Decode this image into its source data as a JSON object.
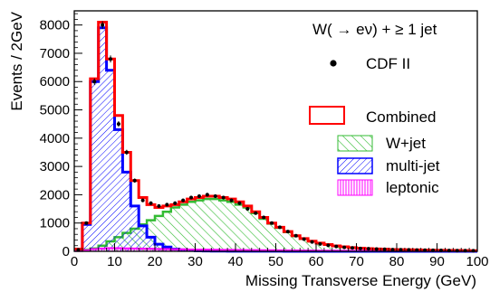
{
  "chart_data": {
    "type": "histogram",
    "title": "W( → eν) + ≥ 1 jet",
    "xlabel": "Missing Transverse Energy (GeV)",
    "ylabel": "Events / 2GeV",
    "xlim": [
      0,
      100
    ],
    "ylim": [
      0,
      8500
    ],
    "bin_width": 2,
    "x_ticks": [
      0,
      10,
      20,
      30,
      40,
      50,
      60,
      70,
      80,
      90,
      100
    ],
    "y_ticks": [
      0,
      1000,
      2000,
      3000,
      4000,
      5000,
      6000,
      7000,
      8000
    ],
    "legend_position": "top-right",
    "colors": {
      "data": "#000000",
      "combined": "#ff0000",
      "wjet": "#33bb33",
      "multijet": "#0000ff",
      "leptonic": "#ff00ff"
    },
    "series": [
      {
        "name": "CDF II",
        "style": "points",
        "values": [
          50,
          1000,
          6000,
          8000,
          6800,
          4500,
          3500,
          2500,
          1800,
          1700,
          1600,
          1650,
          1700,
          1800,
          1900,
          1950,
          2000,
          1950,
          1900,
          1800,
          1700,
          1500,
          1350,
          1200,
          1000,
          850,
          700,
          550,
          430,
          330,
          260,
          210,
          170,
          140,
          120,
          100,
          90,
          80,
          70,
          60,
          55,
          50,
          45,
          40,
          35,
          30,
          28,
          25,
          22,
          20
        ]
      },
      {
        "name": "Combined",
        "style": "outline",
        "values": [
          80,
          1000,
          6100,
          8100,
          6800,
          4800,
          3500,
          2500,
          1900,
          1650,
          1550,
          1600,
          1650,
          1750,
          1850,
          1900,
          1950,
          1950,
          1900,
          1850,
          1750,
          1600,
          1400,
          1200,
          1000,
          850,
          700,
          550,
          450,
          360,
          290,
          240,
          190,
          160,
          130,
          110,
          95,
          85,
          75,
          65,
          60,
          55,
          50,
          45,
          40,
          35,
          32,
          30,
          27,
          25
        ]
      },
      {
        "name": "W+jet",
        "style": "hatch-diagonal",
        "values": [
          20,
          50,
          100,
          200,
          350,
          500,
          650,
          800,
          950,
          1100,
          1250,
          1400,
          1550,
          1650,
          1750,
          1800,
          1850,
          1850,
          1800,
          1750,
          1650,
          1550,
          1350,
          1150,
          980,
          830,
          680,
          540,
          440,
          350,
          280,
          230,
          185,
          155,
          125,
          105,
          90,
          80,
          70,
          60,
          55,
          50,
          45,
          40,
          35,
          30,
          28,
          26,
          24,
          22
        ]
      },
      {
        "name": "multi-jet",
        "style": "hatch-back",
        "values": [
          60,
          950,
          6000,
          7900,
          6400,
          4300,
          2800,
          1600,
          900,
          500,
          250,
          150,
          80,
          50,
          30,
          20,
          10,
          8,
          6,
          5,
          4,
          3,
          3,
          2,
          2,
          2,
          1,
          1,
          1,
          1,
          1,
          1,
          1,
          1,
          1,
          1,
          1,
          1,
          1,
          1,
          1,
          1,
          1,
          1,
          1,
          1,
          1,
          1,
          1,
          1
        ]
      },
      {
        "name": "leptonic",
        "style": "hatch-vertical",
        "values": [
          10,
          40,
          80,
          100,
          110,
          110,
          105,
          100,
          95,
          90,
          85,
          80,
          75,
          70,
          65,
          60,
          58,
          55,
          52,
          50,
          48,
          45,
          42,
          40,
          38,
          35,
          33,
          31,
          29,
          27,
          25,
          23,
          22,
          21,
          20,
          19,
          18,
          17,
          16,
          15,
          14,
          13,
          12,
          11,
          10,
          10,
          10,
          10,
          10,
          10
        ]
      }
    ]
  }
}
